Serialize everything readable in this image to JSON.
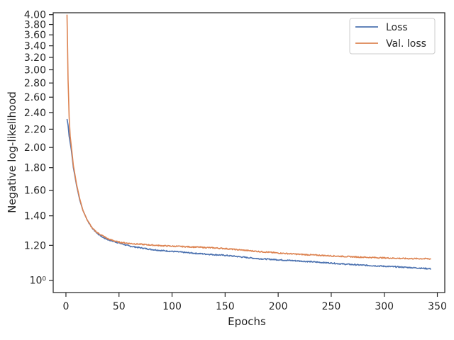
{
  "chart_data": {
    "type": "line",
    "xlabel": "Epochs",
    "ylabel": "Negative log-likelihood",
    "xlim": [
      -12,
      357
    ],
    "ylim": [
      0.938,
      4.04
    ],
    "yscale": "log",
    "grid": false,
    "legend_position": "top-right",
    "x_ticks": [
      0,
      50,
      100,
      150,
      200,
      250,
      300,
      350
    ],
    "x_tick_labels": [
      "0",
      "50",
      "100",
      "150",
      "200",
      "250",
      "300",
      "350"
    ],
    "y_ticks": [
      1.0,
      1.2,
      1.4,
      1.6,
      1.8,
      2.0,
      2.2,
      2.4,
      2.6,
      2.8,
      3.0,
      3.2,
      3.4,
      3.6,
      3.8,
      4.0
    ],
    "y_tick_labels": [
      "10⁰",
      "1.20",
      "1.40",
      "1.60",
      "1.80",
      "2.00",
      "2.20",
      "2.40",
      "2.60",
      "2.80",
      "3.00",
      "3.20",
      "3.40",
      "3.60",
      "3.80",
      "4.00"
    ],
    "series": [
      {
        "name": "Loss",
        "color": "#4c72b0",
        "x": [
          1,
          2,
          3,
          5,
          7,
          10,
          13,
          16,
          20,
          25,
          30,
          35,
          40,
          45,
          50,
          60,
          70,
          80,
          90,
          100,
          120,
          140,
          150,
          160,
          180,
          200,
          220,
          240,
          250,
          260,
          280,
          300,
          320,
          330,
          340,
          344
        ],
        "y": [
          2.32,
          2.25,
          2.12,
          1.98,
          1.8,
          1.64,
          1.52,
          1.44,
          1.37,
          1.31,
          1.275,
          1.25,
          1.235,
          1.225,
          1.215,
          1.195,
          1.185,
          1.175,
          1.168,
          1.163,
          1.152,
          1.143,
          1.139,
          1.133,
          1.12,
          1.113,
          1.106,
          1.098,
          1.094,
          1.089,
          1.082,
          1.076,
          1.07,
          1.067,
          1.063,
          1.062
        ]
      },
      {
        "name": "Val. loss",
        "color": "#dd8452",
        "x": [
          1,
          2,
          3,
          4,
          5,
          7,
          10,
          13,
          16,
          20,
          25,
          30,
          35,
          40,
          45,
          50,
          60,
          70,
          80,
          90,
          100,
          120,
          140,
          150,
          160,
          180,
          200,
          220,
          240,
          250,
          260,
          280,
          300,
          320,
          340,
          344
        ],
        "y": [
          4.0,
          2.85,
          2.35,
          2.12,
          2.02,
          1.82,
          1.65,
          1.53,
          1.44,
          1.37,
          1.31,
          1.28,
          1.26,
          1.24,
          1.23,
          1.22,
          1.212,
          1.207,
          1.202,
          1.198,
          1.195,
          1.19,
          1.184,
          1.18,
          1.174,
          1.163,
          1.153,
          1.145,
          1.139,
          1.136,
          1.133,
          1.128,
          1.124,
          1.12,
          1.119,
          1.118
        ]
      }
    ]
  }
}
